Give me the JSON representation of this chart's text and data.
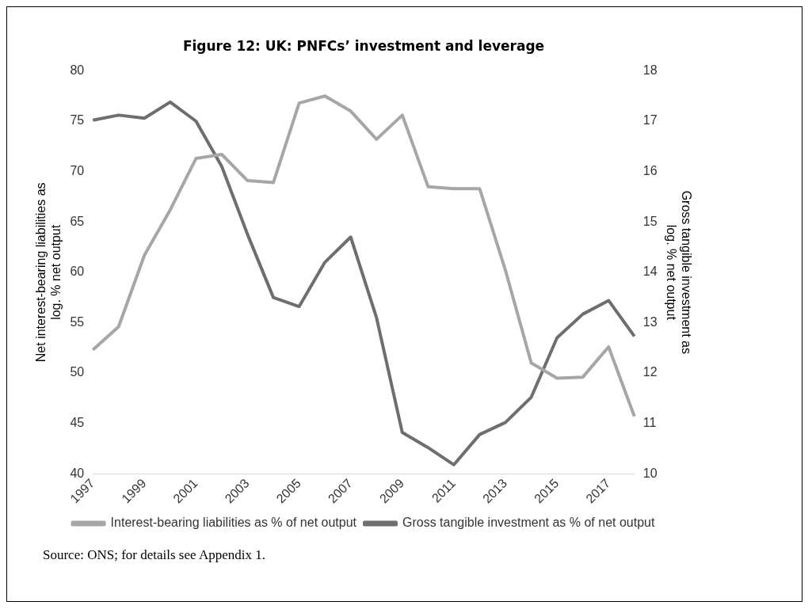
{
  "chart_data": {
    "type": "line",
    "title": "Figure 12: UK: PNFCs’ investment and leverage",
    "ylabel": "Net interest-bearing liabilities as log. % net output",
    "y2label": "Gross tangible investment as log. % net output",
    "categories": [
      "1997",
      null,
      "1999",
      null,
      "2001",
      null,
      "2003",
      null,
      "2005",
      null,
      "2007",
      null,
      "2009",
      null,
      "2011",
      null,
      "2013",
      null,
      "2015",
      null,
      "2017",
      null
    ],
    "series": [
      {
        "name": "Interest-bearing liabilities as % of net output",
        "color": "#a6a6a6",
        "values": [
          52.3,
          54.6,
          61.7,
          66.2,
          71.3,
          71.7,
          69.1,
          68.9,
          76.8,
          77.5,
          76.0,
          73.2,
          75.6,
          68.5,
          68.3,
          68.3,
          60.2,
          51.0,
          49.5,
          49.6,
          52.6,
          45.7
        ]
      },
      {
        "name": "Gross tangible investment as % of net output",
        "color": "#6e6e6e",
        "axis": "y2",
        "values": [
          17.02,
          17.12,
          17.06,
          17.38,
          17.0,
          16.1,
          14.75,
          13.5,
          13.32,
          14.2,
          14.7,
          13.1,
          10.82,
          10.52,
          10.18,
          10.78,
          11.02,
          11.52,
          12.7,
          13.17,
          13.44,
          12.73
        ]
      }
    ],
    "ylim": [
      40,
      80
    ],
    "yticks": [
      40,
      45,
      50,
      55,
      60,
      65,
      70,
      75,
      80
    ],
    "y2lim": [
      10,
      18
    ],
    "y2ticks": [
      10,
      11,
      12,
      13,
      14,
      15,
      16,
      17,
      18
    ],
    "grid": false,
    "legend": "bottom",
    "marker": "none",
    "line_style": "solid",
    "annotations": [
      "Source: ONS; for details see Appendix 1."
    ]
  }
}
